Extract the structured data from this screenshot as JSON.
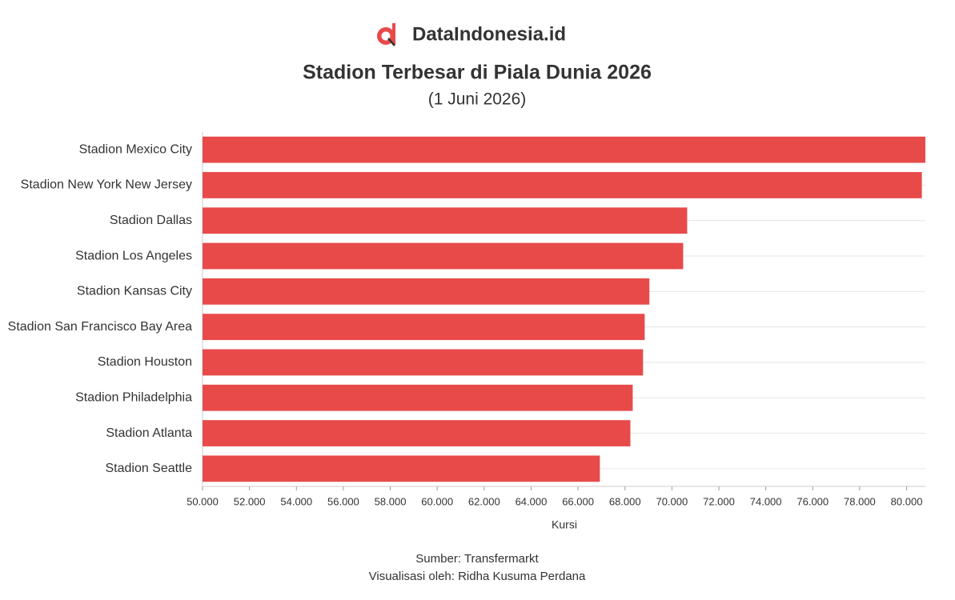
{
  "brand": "DataIndonesia.id",
  "chart_data": {
    "type": "hbar",
    "title": "Stadion Terbesar di Piala Dunia 2026",
    "subtitle": "(1 Juni 2026)",
    "x_label": "Kursi",
    "categories": [
      "Stadion Mexico City",
      "Stadion New York New Jersey",
      "Stadion Dallas",
      "Stadion Los Angeles",
      "Stadion Kansas City",
      "Stadion San Francisco Bay Area",
      "Stadion Houston",
      "Stadion Philadelphia",
      "Stadion Atlanta",
      "Stadion Seattle"
    ],
    "values": [
      80800,
      80650,
      70650,
      70480,
      69040,
      68840,
      68770,
      68330,
      68230,
      66930
    ],
    "color": "#e84a4a",
    "xlim": [
      50000,
      80800
    ],
    "xticks": [
      {
        "value": 50000,
        "label": "50.000"
      },
      {
        "value": 52000,
        "label": "52.000"
      },
      {
        "value": 54000,
        "label": "54.000"
      },
      {
        "value": 56000,
        "label": "56.000"
      },
      {
        "value": 58000,
        "label": "58.000"
      },
      {
        "value": 60000,
        "label": "60.000"
      },
      {
        "value": 62000,
        "label": "62.000"
      },
      {
        "value": 64000,
        "label": "64.000"
      },
      {
        "value": 66000,
        "label": "66.000"
      },
      {
        "value": 68000,
        "label": "68.000"
      },
      {
        "value": 70000,
        "label": "70.000"
      },
      {
        "value": 72000,
        "label": "72.000"
      },
      {
        "value": 74000,
        "label": "74.000"
      },
      {
        "value": 76000,
        "label": "76.000"
      },
      {
        "value": 78000,
        "label": "78.000"
      },
      {
        "value": 80000,
        "label": "80.000"
      }
    ],
    "grid": true
  },
  "footer": {
    "source": "Sumber: Transfermarkt",
    "credit": "Visualisasi oleh: Ridha Kusuma Perdana"
  }
}
